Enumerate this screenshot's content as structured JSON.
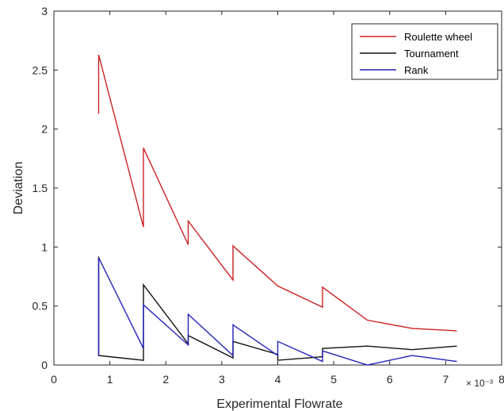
{
  "chart_data": {
    "type": "line",
    "xlabel": "Experimental Flowrate",
    "ylabel": "Deviation",
    "x_multiplier_label": "× 10⁻³",
    "xlim": [
      0,
      8
    ],
    "ylim": [
      0,
      3
    ],
    "xticks": [
      0,
      1,
      2,
      3,
      4,
      5,
      6,
      7,
      8
    ],
    "yticks": [
      0,
      0.5,
      1,
      1.5,
      2,
      2.5,
      3
    ],
    "xtick_labels": [
      "0",
      "1",
      "2",
      "3",
      "4",
      "5",
      "6",
      "7",
      "8"
    ],
    "ytick_labels": [
      "0",
      "0.5",
      "1",
      "1.5",
      "2",
      "2.5",
      "3"
    ],
    "grid": false,
    "legend_position": "top-right",
    "series": [
      {
        "name": "Roulette wheel",
        "color": "#cc2222",
        "x": [
          0.8,
          0.8,
          1.6,
          1.6,
          2.4,
          2.4,
          3.2,
          3.2,
          4.0,
          4.8,
          4.8,
          5.6,
          6.4,
          7.2
        ],
        "y": [
          2.13,
          2.63,
          1.17,
          1.84,
          1.02,
          1.22,
          0.72,
          1.01,
          0.67,
          0.49,
          0.66,
          0.38,
          0.31,
          0.29
        ]
      },
      {
        "name": "Tournament",
        "color": "#111111",
        "x": [
          0.8,
          0.8,
          1.6,
          1.6,
          2.4,
          2.4,
          3.2,
          3.2,
          4.0,
          4.0,
          4.8,
          4.8,
          5.6,
          6.4,
          7.2
        ],
        "y": [
          0.92,
          0.08,
          0.04,
          0.68,
          0.18,
          0.25,
          0.06,
          0.2,
          0.09,
          0.04,
          0.07,
          0.14,
          0.16,
          0.13,
          0.16
        ]
      },
      {
        "name": "Rank",
        "color": "#2222bb",
        "x": [
          0.8,
          0.8,
          1.6,
          1.6,
          2.4,
          2.4,
          3.2,
          3.2,
          4.0,
          4.0,
          4.8,
          4.8,
          5.6,
          6.4,
          7.2
        ],
        "y": [
          0.08,
          0.91,
          0.14,
          0.51,
          0.17,
          0.43,
          0.08,
          0.34,
          0.08,
          0.2,
          0.03,
          0.12,
          0.0,
          0.08,
          0.03
        ]
      }
    ]
  }
}
